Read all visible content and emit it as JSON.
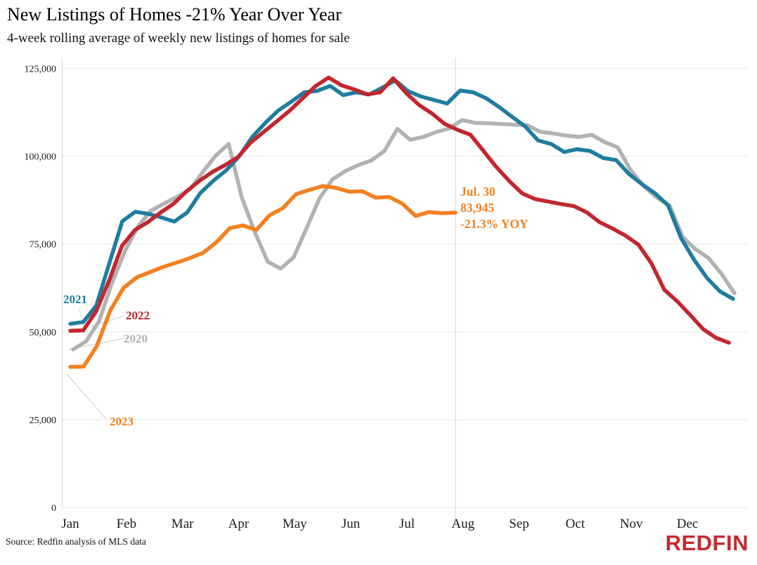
{
  "header": {
    "title": "New Listings of Homes -21% Year Over Year",
    "subtitle": "4-week rolling average of weekly new listings of homes for sale"
  },
  "source_text": "Source: Redfin analysis of MLS data",
  "logo_text": "REDFIN",
  "logo_color": "#C32A30",
  "annotation": {
    "line1": "Jul. 30",
    "line2": "83,945",
    "line3": "-21.3% YOY",
    "color": "#F4801F"
  },
  "chart_data": {
    "type": "line",
    "title": "New Listings of Homes -21% Year Over Year",
    "subtitle": "4-week rolling average of weekly new listings of homes for sale",
    "ylabel": "",
    "xlabel": "",
    "ylim": [
      0,
      125000
    ],
    "grid": "horizontal",
    "x_ticks": [
      "Jan",
      "Feb",
      "Mar",
      "Apr",
      "May",
      "Jun",
      "Jul",
      "Aug",
      "Sep",
      "Oct",
      "Nov",
      "Dec"
    ],
    "y_ticks": [
      {
        "value": 125000,
        "label": "125,000"
      },
      {
        "value": 100000,
        "label": "100,000"
      },
      {
        "value": 75000,
        "label": "75,000"
      },
      {
        "value": 50000,
        "label": "50,000"
      },
      {
        "value": 25000,
        "label": "25,000"
      },
      {
        "value": 0,
        "label": "0"
      }
    ],
    "marker_line": {
      "date_label": "Jul. 30",
      "value": 83945,
      "yoy": "-21.3% YOY"
    },
    "series": [
      {
        "name": "2020",
        "color": "#B2B2B2",
        "values": [
          45000,
          47300,
          53000,
          64000,
          73000,
          80000,
          84500,
          86500,
          88400,
          90500,
          95500,
          100200,
          103500,
          88300,
          78500,
          70000,
          68000,
          71200,
          79500,
          88000,
          93400,
          95800,
          97500,
          98800,
          101500,
          107800,
          104700,
          105500,
          106900,
          107900,
          110300,
          109500,
          109400,
          109200,
          109000,
          108900,
          107000,
          106500,
          105900,
          105500,
          106100,
          104000,
          102500,
          96000,
          91500,
          88200,
          86000,
          77000,
          73500,
          71000,
          66500,
          61000
        ]
      },
      {
        "name": "2021",
        "color": "#1E7D9F",
        "values": [
          52300,
          52800,
          57500,
          69500,
          81500,
          84200,
          83600,
          82600,
          81400,
          84000,
          89500,
          93000,
          96000,
          100000,
          105500,
          109500,
          113000,
          115500,
          118200,
          118600,
          120000,
          117400,
          118200,
          117600,
          119500,
          121600,
          118500,
          117000,
          116000,
          115000,
          118700,
          118200,
          116500,
          114000,
          111200,
          108500,
          104500,
          103500,
          101200,
          102000,
          101500,
          99500,
          98900,
          94900,
          92000,
          89400,
          86000,
          76700,
          70500,
          65300,
          61500,
          59400
        ]
      },
      {
        "name": "2022",
        "color": "#C2272D",
        "values": [
          50300,
          50400,
          55800,
          64500,
          74500,
          79000,
          81200,
          84000,
          86500,
          90000,
          93000,
          95500,
          97500,
          99800,
          104000,
          107000,
          110000,
          113000,
          116500,
          120000,
          122400,
          120200,
          119000,
          117600,
          118200,
          122200,
          118000,
          114600,
          112200,
          109200,
          107500,
          106100,
          101500,
          96900,
          92900,
          89400,
          87800,
          87100,
          86400,
          85800,
          84000,
          81200,
          79400,
          77400,
          74800,
          69500,
          62000,
          58700,
          54800,
          50800,
          48300,
          46900
        ]
      },
      {
        "name": "2023",
        "color": "#F4801F",
        "values": [
          40000,
          40100,
          46000,
          56000,
          62500,
          65500,
          67000,
          68500,
          69700,
          71000,
          72500,
          75500,
          79500,
          80300,
          79000,
          83200,
          85200,
          89200,
          90400,
          91500,
          91000,
          89900,
          90000,
          88200,
          88400,
          86500,
          83000,
          84100,
          83800,
          83945
        ]
      }
    ]
  }
}
